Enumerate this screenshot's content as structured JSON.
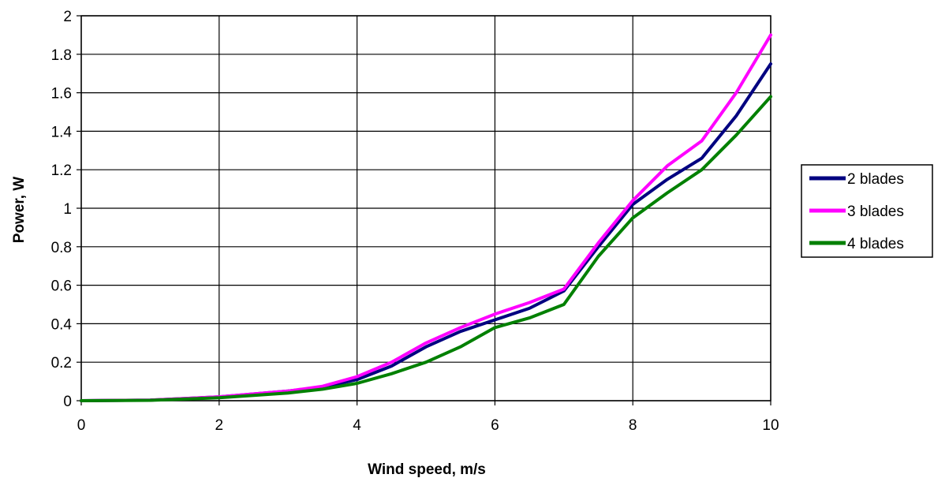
{
  "chart_data": {
    "type": "line",
    "title": "",
    "xlabel": "Wind speed, m/s",
    "ylabel": "Power, W",
    "xlim": [
      0,
      10
    ],
    "ylim": [
      0,
      2
    ],
    "x_ticks": [
      "0",
      "2",
      "4",
      "6",
      "8",
      "10"
    ],
    "y_ticks": [
      "0",
      "0.2",
      "0.4",
      "0.6",
      "0.8",
      "1",
      "1.2",
      "1.4",
      "1.6",
      "1.8",
      "2"
    ],
    "grid": true,
    "legend_position": "right",
    "series": [
      {
        "name": "2 blades",
        "color": "#000080",
        "points": [
          [
            0,
            0
          ],
          [
            1,
            0.003
          ],
          [
            2,
            0.02
          ],
          [
            3,
            0.05
          ],
          [
            3.5,
            0.07
          ],
          [
            4,
            0.11
          ],
          [
            4.5,
            0.18
          ],
          [
            5,
            0.28
          ],
          [
            5.5,
            0.36
          ],
          [
            6,
            0.42
          ],
          [
            6.5,
            0.48
          ],
          [
            7,
            0.57
          ],
          [
            7.5,
            0.8
          ],
          [
            8,
            1.02
          ],
          [
            8.5,
            1.15
          ],
          [
            9,
            1.26
          ],
          [
            9.5,
            1.48
          ],
          [
            10,
            1.75
          ]
        ]
      },
      {
        "name": "3 blades",
        "color": "#FF00FF",
        "points": [
          [
            0,
            0
          ],
          [
            1,
            0.003
          ],
          [
            2,
            0.02
          ],
          [
            3,
            0.05
          ],
          [
            3.5,
            0.075
          ],
          [
            4,
            0.125
          ],
          [
            4.5,
            0.2
          ],
          [
            5,
            0.3
          ],
          [
            5.5,
            0.38
          ],
          [
            6,
            0.45
          ],
          [
            6.5,
            0.51
          ],
          [
            7,
            0.58
          ],
          [
            7.5,
            0.82
          ],
          [
            8,
            1.04
          ],
          [
            8.5,
            1.22
          ],
          [
            9,
            1.35
          ],
          [
            9.5,
            1.6
          ],
          [
            10,
            1.9
          ]
        ]
      },
      {
        "name": "4 blades",
        "color": "#008000",
        "points": [
          [
            0,
            0
          ],
          [
            1,
            0.002
          ],
          [
            2,
            0.015
          ],
          [
            3,
            0.04
          ],
          [
            3.5,
            0.06
          ],
          [
            4,
            0.09
          ],
          [
            4.5,
            0.14
          ],
          [
            5,
            0.2
          ],
          [
            5.5,
            0.28
          ],
          [
            6,
            0.38
          ],
          [
            6.5,
            0.43
          ],
          [
            7,
            0.5
          ],
          [
            7.5,
            0.75
          ],
          [
            8,
            0.95
          ],
          [
            8.5,
            1.08
          ],
          [
            9,
            1.2
          ],
          [
            9.5,
            1.38
          ],
          [
            10,
            1.58
          ]
        ]
      }
    ]
  }
}
